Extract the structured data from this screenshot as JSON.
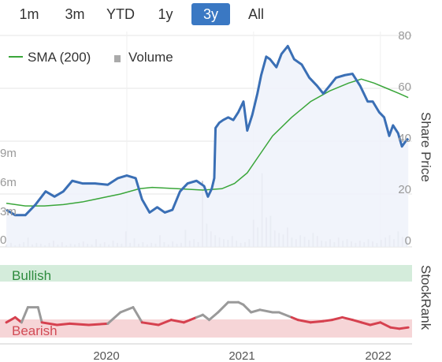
{
  "range_tabs": [
    {
      "label": "1m",
      "active": false
    },
    {
      "label": "3m",
      "active": false
    },
    {
      "label": "YTD",
      "active": false
    },
    {
      "label": "1y",
      "active": false
    },
    {
      "label": "3y",
      "active": true
    },
    {
      "label": "All",
      "active": false
    }
  ],
  "legend": {
    "sma_label": "SMA (200)",
    "volume_label": "Volume"
  },
  "axes": {
    "price_title": "Share Price",
    "price_ticks": [
      "80",
      "60",
      "40",
      "20",
      "0"
    ],
    "volume_ticks": [
      "9m",
      "6m",
      "3m",
      "0"
    ],
    "x_ticks": [
      "2020",
      "2021",
      "2022"
    ],
    "stockrank_title": "StockRank",
    "bullish_label": "Bullish",
    "bearish_label": "Bearish"
  },
  "colors": {
    "accent": "#3a78c3",
    "price_line": "#3a6fb5",
    "sma_line": "#3aa63a",
    "volume_bar": "#c8c8cc",
    "bullish_band": "#d4ecdb",
    "bullish_text": "#2e8b3e",
    "bearish_band": "#f6d5d7",
    "bearish_text": "#d24b56",
    "rank_grey": "#9a9a9a",
    "rank_red": "#d6414f"
  },
  "chart_data": [
    {
      "type": "line",
      "title": "",
      "ylabel": "Share Price",
      "ylim": [
        0,
        80
      ],
      "x_ticks": [
        "2020",
        "2021",
        "2022"
      ],
      "grid": true,
      "legend_position": "top-left",
      "series": [
        {
          "name": "SMA (200)",
          "values": [
            [
              2019.05,
              16.5
            ],
            [
              2019.2,
              15.5
            ],
            [
              2019.35,
              15.5
            ],
            [
              2019.5,
              16
            ],
            [
              2019.65,
              17
            ],
            [
              2019.8,
              18.5
            ],
            [
              2019.95,
              20
            ],
            [
              2020.1,
              22
            ],
            [
              2020.2,
              22.5
            ],
            [
              2020.4,
              22
            ],
            [
              2020.6,
              21.5
            ],
            [
              2020.75,
              22
            ],
            [
              2020.85,
              24
            ],
            [
              2020.95,
              28
            ],
            [
              2021.05,
              35
            ],
            [
              2021.15,
              42
            ],
            [
              2021.3,
              49
            ],
            [
              2021.45,
              55
            ],
            [
              2021.6,
              59
            ],
            [
              2021.75,
              62
            ],
            [
              2021.85,
              63.5
            ],
            [
              2021.95,
              62
            ],
            [
              2022.05,
              60
            ],
            [
              2022.15,
              58
            ],
            [
              2022.22,
              56.5
            ]
          ]
        },
        {
          "name": "Share Price",
          "values": [
            [
              2019.05,
              14
            ],
            [
              2019.12,
              12
            ],
            [
              2019.2,
              12
            ],
            [
              2019.28,
              16
            ],
            [
              2019.36,
              21
            ],
            [
              2019.43,
              19
            ],
            [
              2019.5,
              21
            ],
            [
              2019.57,
              25
            ],
            [
              2019.65,
              24
            ],
            [
              2019.75,
              24
            ],
            [
              2019.85,
              23.5
            ],
            [
              2019.93,
              26
            ],
            [
              2020.0,
              27
            ],
            [
              2020.07,
              26
            ],
            [
              2020.12,
              18
            ],
            [
              2020.18,
              13
            ],
            [
              2020.24,
              15
            ],
            [
              2020.3,
              13
            ],
            [
              2020.36,
              14
            ],
            [
              2020.42,
              21
            ],
            [
              2020.48,
              24
            ],
            [
              2020.55,
              25
            ],
            [
              2020.61,
              23
            ],
            [
              2020.64,
              19
            ],
            [
              2020.67,
              22
            ],
            [
              2020.69,
              26
            ],
            [
              2020.7,
              45
            ],
            [
              2020.73,
              47
            ],
            [
              2020.76,
              48
            ],
            [
              2020.8,
              49
            ],
            [
              2020.84,
              48
            ],
            [
              2020.88,
              51
            ],
            [
              2020.92,
              55
            ],
            [
              2020.95,
              44
            ],
            [
              2020.99,
              50
            ],
            [
              2021.03,
              58
            ],
            [
              2021.06,
              65
            ],
            [
              2021.1,
              72
            ],
            [
              2021.13,
              71
            ],
            [
              2021.18,
              68
            ],
            [
              2021.22,
              73
            ],
            [
              2021.27,
              76
            ],
            [
              2021.32,
              71
            ],
            [
              2021.38,
              69
            ],
            [
              2021.44,
              64
            ],
            [
              2021.5,
              61
            ],
            [
              2021.55,
              58
            ],
            [
              2021.6,
              61
            ],
            [
              2021.65,
              64
            ],
            [
              2021.72,
              65
            ],
            [
              2021.78,
              65.5
            ],
            [
              2021.84,
              61
            ],
            [
              2021.9,
              55
            ],
            [
              2021.94,
              55
            ],
            [
              2021.99,
              51
            ],
            [
              2022.03,
              49
            ],
            [
              2022.07,
              42
            ],
            [
              2022.1,
              46
            ],
            [
              2022.14,
              43
            ],
            [
              2022.17,
              38
            ],
            [
              2022.2,
              40
            ],
            [
              2022.22,
              41
            ]
          ]
        }
      ]
    },
    {
      "type": "bar",
      "title": "",
      "ylabel": "",
      "ylim_millions": [
        0,
        12
      ],
      "series": [
        {
          "name": "Volume",
          "values_millions": [
            0.3,
            0.5,
            0.2,
            0.4,
            0.6,
            1.2,
            0.3,
            0.5,
            0.4,
            0.2,
            0.5,
            0.8,
            0.3,
            0.6,
            0.2,
            0.4,
            0.3,
            0.5,
            0.7,
            0.4,
            0.3,
            1.0,
            0.4,
            0.6,
            0.3,
            0.8,
            0.5,
            0.4,
            2.0,
            0.5,
            1.1,
            0.4,
            0.6,
            0.3,
            0.5,
            0.4,
            1.5,
            0.6,
            0.3,
            0.7,
            0.4,
            0.5,
            2.2,
            0.8,
            1.0,
            0.6,
            8.5,
            3.0,
            2.0,
            1.5,
            1.2,
            1.0,
            0.9,
            1.4,
            0.8,
            0.5,
            0.6,
            1.0,
            3.5,
            2.5,
            9.5,
            3.8,
            4.0,
            2.1,
            1.8,
            1.6,
            2.5,
            1.2,
            1.0,
            1.5,
            1.3,
            0.9,
            1.8,
            1.4,
            0.8,
            0.7,
            1.0,
            0.6,
            1.2,
            0.8,
            1.0,
            0.7,
            0.5,
            0.8,
            0.6,
            1.0,
            0.7,
            0.5,
            0.9,
            1.2,
            1.5,
            1.0,
            2.0,
            1.3,
            0.7
          ]
        }
      ]
    },
    {
      "type": "line",
      "title": "",
      "ylabel": "StockRank",
      "series": [
        {
          "name": "StockRank",
          "values": [
            [
              2019.05,
              88
            ],
            [
              2019.12,
              84
            ],
            [
              2019.17,
              88
            ],
            [
              2019.22,
              76
            ],
            [
              2019.3,
              76
            ],
            [
              2019.33,
              88
            ],
            [
              2019.45,
              90
            ],
            [
              2019.55,
              89
            ],
            [
              2019.7,
              90
            ],
            [
              2019.85,
              89
            ],
            [
              2019.95,
              80
            ],
            [
              2020.05,
              76
            ],
            [
              2020.12,
              88
            ],
            [
              2020.25,
              90
            ],
            [
              2020.35,
              86
            ],
            [
              2020.45,
              88
            ],
            [
              2020.5,
              86
            ],
            [
              2020.55,
              84
            ],
            [
              2020.6,
              82
            ],
            [
              2020.65,
              86
            ],
            [
              2020.72,
              80
            ],
            [
              2020.8,
              72
            ],
            [
              2020.88,
              72
            ],
            [
              2020.92,
              74
            ],
            [
              2020.98,
              80
            ],
            [
              2021.05,
              78
            ],
            [
              2021.15,
              80
            ],
            [
              2021.2,
              80
            ],
            [
              2021.3,
              84
            ],
            [
              2021.35,
              86
            ],
            [
              2021.45,
              88
            ],
            [
              2021.55,
              87
            ],
            [
              2021.62,
              86
            ],
            [
              2021.7,
              84
            ],
            [
              2021.78,
              86
            ],
            [
              2021.85,
              88
            ],
            [
              2021.92,
              90
            ],
            [
              2022.0,
              88
            ],
            [
              2022.08,
              92
            ],
            [
              2022.15,
              93
            ],
            [
              2022.22,
              92
            ]
          ]
        }
      ]
    }
  ]
}
